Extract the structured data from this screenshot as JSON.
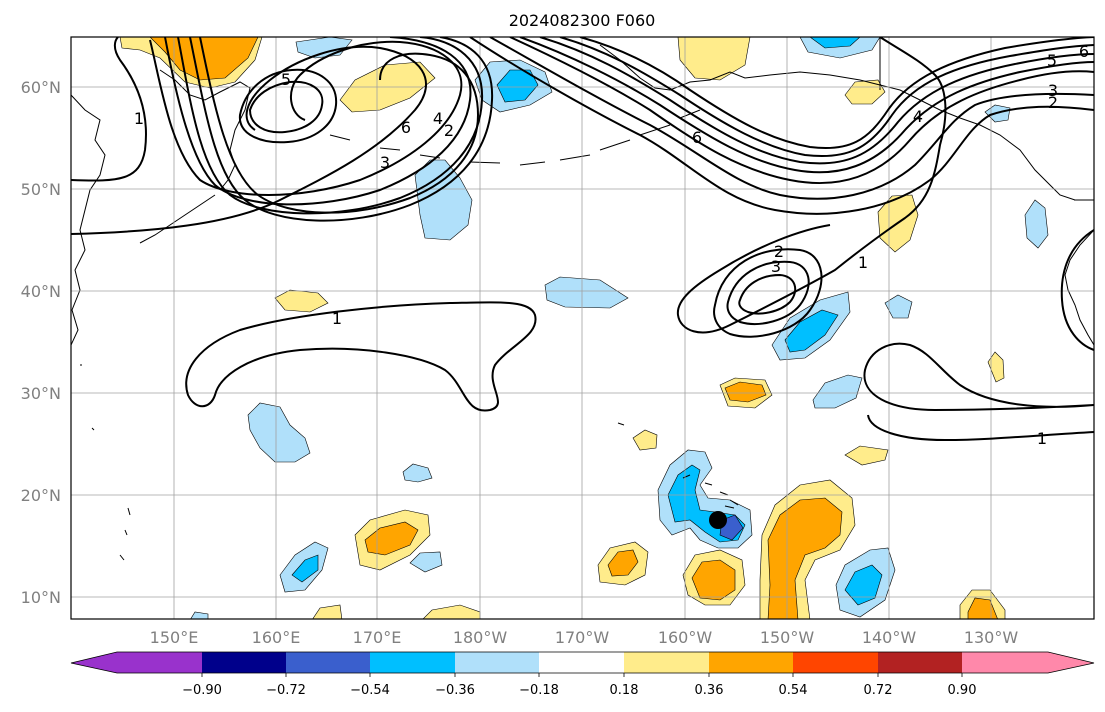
{
  "title": "2024082300 F060",
  "longitude_labels": [
    "150°E",
    "160°E",
    "170°E",
    "180°W",
    "170°W",
    "160°W",
    "150°W",
    "140°W",
    "130°W"
  ],
  "latitude_labels": [
    "60°N",
    "50°N",
    "40°N",
    "30°N",
    "20°N",
    "10°N"
  ],
  "colorbar": {
    "tick_labels": [
      "−0.90",
      "−0.72",
      "−0.54",
      "−0.36",
      "−0.18",
      "0.18",
      "0.36",
      "0.54",
      "0.72",
      "0.90"
    ],
    "colors": [
      "#9932cc",
      "#00008b",
      "#3a5fcd",
      "#00bfff",
      "#b0e0fa",
      "#ffffff",
      "#ffec8b",
      "#ffa500",
      "#ff4500",
      "#b22222",
      "#ff88aa"
    ]
  },
  "contour_labels": [
    "1",
    "1",
    "1",
    "1",
    "2",
    "2",
    "3",
    "3",
    "4",
    "4",
    "5",
    "5",
    "6",
    "6",
    "6",
    "2",
    "3"
  ],
  "colors": {
    "light_blue": "#b0e0fa",
    "deep_sky_blue": "#00bfff",
    "royal_blue": "#3a5fcd",
    "light_yellow": "#ffec8b",
    "orange": "#ffa500",
    "grid": "#a0a0a0",
    "marker": "#000000"
  },
  "marker": {
    "lon": -156.5,
    "lat": 17.5
  }
}
